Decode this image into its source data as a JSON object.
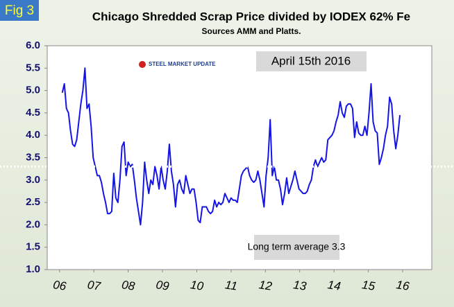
{
  "chart_data": {
    "type": "line",
    "figure_label": "Fig 3",
    "title": "Chicago Shredded Scrap Price divided by IODEX 62% Fe",
    "subtitle": "Sources AMM and Platts.",
    "logo": "STEEL MARKET UPDATE",
    "date_note": "April 15th 2016",
    "average": 3.3,
    "average_label": "Long term average 3.3",
    "color": "#1414e6",
    "average_color": "#ffffff",
    "xlim": [
      5.64,
      16.85
    ],
    "ylim": [
      1,
      6
    ],
    "xticks": [
      {
        "value": 6,
        "label": "06"
      },
      {
        "value": 7,
        "label": "07"
      },
      {
        "value": 8,
        "label": "08"
      },
      {
        "value": 9,
        "label": "09"
      },
      {
        "value": 10,
        "label": "10"
      },
      {
        "value": 11,
        "label": "11"
      },
      {
        "value": 12,
        "label": "12"
      },
      {
        "value": 13,
        "label": "13"
      },
      {
        "value": 14,
        "label": "14"
      },
      {
        "value": 15,
        "label": "15"
      },
      {
        "value": 16,
        "label": "16"
      }
    ],
    "yticks": [
      {
        "value": 1,
        "label": "1.0"
      },
      {
        "value": 1.5,
        "label": "1.5"
      },
      {
        "value": 2,
        "label": "2.0"
      },
      {
        "value": 2.5,
        "label": "2.5"
      },
      {
        "value": 3,
        "label": "3.0"
      },
      {
        "value": 3.5,
        "label": "3.5"
      },
      {
        "value": 4,
        "label": "4.0"
      },
      {
        "value": 4.5,
        "label": "4.5"
      },
      {
        "value": 5,
        "label": "5.0"
      },
      {
        "value": 5.5,
        "label": "5.5"
      },
      {
        "value": 6,
        "label": "6.0"
      }
    ],
    "x": [
      6.08,
      6.14,
      6.2,
      6.26,
      6.32,
      6.38,
      6.44,
      6.5,
      6.56,
      6.62,
      6.68,
      6.74,
      6.8,
      6.86,
      6.92,
      6.98,
      7.04,
      7.1,
      7.16,
      7.22,
      7.28,
      7.34,
      7.4,
      7.46,
      7.52,
      7.58,
      7.64,
      7.7,
      7.76,
      7.82,
      7.88,
      7.94,
      8,
      8.06,
      8.12,
      8.18,
      8.24,
      8.3,
      8.36,
      8.42,
      8.48,
      8.54,
      8.6,
      8.66,
      8.72,
      8.78,
      8.84,
      8.9,
      8.96,
      9.02,
      9.08,
      9.14,
      9.2,
      9.26,
      9.32,
      9.38,
      9.44,
      9.5,
      9.56,
      9.62,
      9.68,
      9.74,
      9.8,
      9.86,
      9.92,
      9.98,
      10.04,
      10.1,
      10.16,
      10.22,
      10.28,
      10.34,
      10.4,
      10.46,
      10.52,
      10.58,
      10.64,
      10.7,
      10.76,
      10.82,
      10.88,
      10.94,
      11,
      11.06,
      11.12,
      11.18,
      11.24,
      11.3,
      11.36,
      11.42,
      11.48,
      11.54,
      11.6,
      11.66,
      11.72,
      11.78,
      11.84,
      11.9,
      11.96,
      12.02,
      12.08,
      12.14,
      12.2,
      12.26,
      12.32,
      12.38,
      12.44,
      12.5,
      12.56,
      12.62,
      12.68,
      12.74,
      12.8,
      12.86,
      12.92,
      12.98,
      13.04,
      13.1,
      13.16,
      13.22,
      13.28,
      13.34,
      13.4,
      13.46,
      13.52,
      13.58,
      13.64,
      13.7,
      13.76,
      13.82,
      13.88,
      13.94,
      14,
      14.06,
      14.12,
      14.18,
      14.24,
      14.3,
      14.36,
      14.42,
      14.48,
      14.54,
      14.6,
      14.66,
      14.72,
      14.78,
      14.84,
      14.9,
      14.96,
      15.02,
      15.08,
      15.14,
      15.2,
      15.26,
      15.32,
      15.38,
      15.44,
      15.5,
      15.56,
      15.62,
      15.68,
      15.74,
      15.8,
      15.86,
      15.92
    ],
    "values": [
      4.95,
      5.15,
      4.6,
      4.5,
      4.1,
      3.8,
      3.75,
      3.9,
      4.3,
      4.7,
      5.0,
      5.5,
      4.6,
      4.7,
      4.2,
      3.5,
      3.3,
      3.1,
      3.1,
      2.95,
      2.7,
      2.5,
      2.25,
      2.25,
      2.3,
      3.15,
      2.6,
      2.5,
      3.0,
      3.75,
      3.85,
      3.1,
      3.4,
      3.3,
      3.35,
      3.0,
      2.6,
      2.3,
      2.0,
      2.5,
      3.4,
      3.0,
      2.7,
      3.0,
      2.9,
      3.3,
      3.1,
      2.8,
      3.3,
      3.0,
      2.8,
      3.2,
      3.8,
      3.2,
      2.9,
      2.4,
      2.9,
      3.0,
      2.8,
      2.7,
      3.1,
      2.9,
      2.7,
      2.8,
      2.8,
      2.5,
      2.1,
      2.05,
      2.4,
      2.4,
      2.4,
      2.3,
      2.25,
      2.3,
      2.55,
      2.4,
      2.5,
      2.45,
      2.5,
      2.7,
      2.6,
      2.5,
      2.6,
      2.55,
      2.55,
      2.5,
      2.8,
      3.1,
      3.2,
      3.25,
      3.3,
      3.1,
      3.0,
      2.95,
      3.0,
      3.2,
      3.0,
      2.7,
      2.4,
      3.1,
      3.5,
      4.35,
      3.1,
      3.3,
      3.0,
      3.0,
      2.8,
      2.45,
      2.7,
      3.05,
      2.7,
      2.85,
      3.0,
      3.2,
      3.0,
      2.8,
      2.75,
      2.7,
      2.7,
      2.75,
      2.9,
      3.0,
      3.3,
      3.45,
      3.3,
      3.4,
      3.5,
      3.4,
      3.45,
      3.9,
      3.95,
      4.0,
      4.1,
      4.3,
      4.45,
      4.75,
      4.5,
      4.4,
      4.65,
      4.7,
      4.7,
      4.6,
      3.95,
      4.3,
      4.05,
      4.0,
      4.0,
      4.2,
      4.0,
      4.5,
      5.15,
      4.3,
      4.1,
      4.05,
      3.35,
      3.5,
      3.7,
      4.0,
      4.2,
      4.85,
      4.7,
      4.1,
      3.7,
      4.0,
      4.45
    ]
  }
}
